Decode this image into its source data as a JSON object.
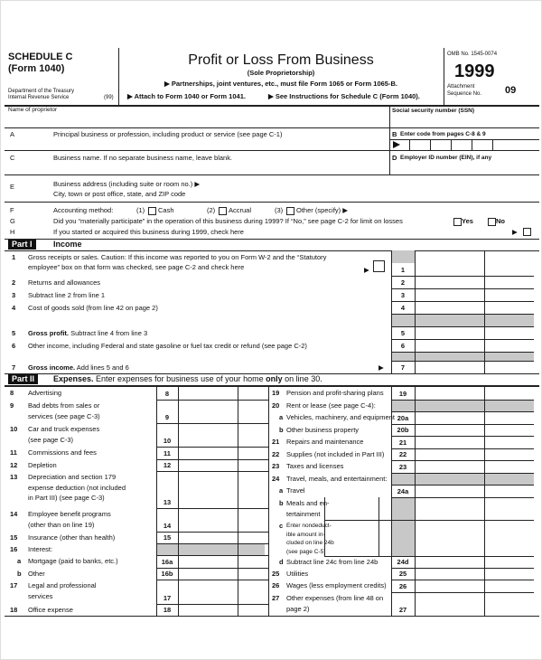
{
  "header": {
    "schedule": "SCHEDULE C",
    "form": "(Form 1040)",
    "department": "Department of the Treasury",
    "irs": "Internal Revenue Service",
    "irs_code": "(99)",
    "title": "Profit or Loss From Business",
    "subtitle": "(Sole Proprietorship)",
    "note1": "▶ Partnerships, joint ventures, etc., must file Form 1065 or Form 1065-B.",
    "note2": "▶ Attach to Form 1040 or Form 1041.",
    "note3": "▶ See Instructions for Schedule C (Form 1040).",
    "omb": "OMB No. 1545-0074",
    "year": "1999",
    "attachment": "Attachment",
    "sequence": "Sequence No.",
    "sequence_no": "09"
  },
  "identity": {
    "name_label": "Name of proprietor",
    "ssn_label": "Social security number (SSN)",
    "a_letter": "A",
    "a_text": "Principal business or profession, including product or service (see page C-1)",
    "b_letter": "B",
    "b_text": "Enter code from pages C-8 & 9",
    "c_letter": "C",
    "c_text": "Business name. If no separate business name, leave blank.",
    "d_letter": "D",
    "d_text": "Employer ID number (EIN), if any",
    "e_letter": "E",
    "e_text": "Business address (including suite or room no.) ▶",
    "e_text2": "City, town or post office, state, and ZIP code",
    "f_letter": "F",
    "f_text": "Accounting method:",
    "f_opt1": "(1)",
    "f_opt1_label": "Cash",
    "f_opt2": "(2)",
    "f_opt2_label": "Accrual",
    "f_opt3": "(3)",
    "f_opt3_label": "Other (specify) ▶",
    "g_letter": "G",
    "g_text": "Did you “materially participate” in the operation of this business during 1999? If “No,” see page C-2 for limit on losses",
    "yes": "Yes",
    "no": "No",
    "h_letter": "H",
    "h_text": "If you started or acquired this business during 1999, check here",
    "h_arrow": "▶"
  },
  "part1": {
    "label": "Part I",
    "title": "Income",
    "lines": [
      {
        "num": "1",
        "text": [
          "Gross receipts or sales. Caution: If this income was reported to you on Form W-2 and the “Statutory",
          "employee” box on that form was checked, see page C-2 and check here"
        ],
        "arrow": "▶",
        "box": "1"
      },
      {
        "num": "2",
        "text": [
          "Returns and allowances"
        ],
        "box": "2"
      },
      {
        "num": "3",
        "text": [
          "Subtract line 2 from line 1"
        ],
        "box": "3"
      },
      {
        "num": "4",
        "text": [
          "Cost of goods sold (from line 42 on page 2)"
        ],
        "box": "4"
      },
      {
        "num": "5",
        "bold": "Gross profit.",
        "text": [
          "Subtract line 4 from line 3"
        ],
        "box": "5"
      },
      {
        "num": "6",
        "text": [
          "Other income, including Federal and state gasoline or fuel tax credit or refund (see page C-2)"
        ],
        "box": "6"
      },
      {
        "num": "7",
        "bold": "Gross income.",
        "text": [
          "Add lines 5 and 6"
        ],
        "arrow": "▶",
        "box": "7"
      }
    ]
  },
  "part2": {
    "label": "Part II",
    "title": "Expenses.",
    "subtitle": [
      "Enter expenses for business use of your home ",
      "only",
      " on line 30."
    ],
    "left": [
      {
        "num": "8",
        "text": [
          "Advertising"
        ],
        "box": "8"
      },
      {
        "num": "9",
        "text": [
          "Bad debts from sales or",
          "services (see page C-3)"
        ],
        "box": "9"
      },
      {
        "num": "10",
        "text": [
          "Car and truck expenses",
          "(see page C-3)"
        ],
        "box": "10"
      },
      {
        "num": "11",
        "text": [
          "Commissions and fees"
        ],
        "box": "11"
      },
      {
        "num": "12",
        "text": [
          "Depletion"
        ],
        "box": "12"
      },
      {
        "num": "13",
        "text": [
          "Depreciation and section 179",
          "expense deduction (not included",
          "in Part III) (see page C-3)"
        ],
        "box": "13"
      },
      {
        "num": "14",
        "text": [
          "Employee benefit programs",
          "(other than on line 19)"
        ],
        "box": "14"
      },
      {
        "num": "15",
        "text": [
          "Insurance (other than health)"
        ],
        "box": "15"
      },
      {
        "num": "16",
        "text": [
          "Interest:"
        ]
      },
      {
        "num": "a",
        "text": [
          "Mortgage (paid to banks, etc.)"
        ],
        "box": "16a"
      },
      {
        "num": "b",
        "text": [
          "Other"
        ],
        "box": "16b"
      },
      {
        "num": "17",
        "text": [
          "Legal and professional",
          "services"
        ],
        "box": "17"
      },
      {
        "num": "18",
        "text": [
          "Office expense"
        ],
        "box": "18"
      }
    ],
    "right": [
      {
        "num": "19",
        "text": [
          "Pension and profit-sharing plans"
        ],
        "box": "19"
      },
      {
        "num": "20",
        "text": [
          "Rent or lease (see page C-4):"
        ]
      },
      {
        "num": "a",
        "text": [
          "Vehicles, machinery, and equipment"
        ],
        "box": "20a"
      },
      {
        "num": "b",
        "text": [
          "Other business property"
        ],
        "box": "20b"
      },
      {
        "num": "21",
        "text": [
          "Repairs and maintenance"
        ],
        "box": "21"
      },
      {
        "num": "22",
        "text": [
          "Supplies (not included in Part III)"
        ],
        "box": "22"
      },
      {
        "num": "23",
        "text": [
          "Taxes and licenses"
        ],
        "box": "23"
      },
      {
        "num": "24",
        "text": [
          "Travel, meals, and entertainment:"
        ]
      },
      {
        "num": "a",
        "text": [
          "Travel"
        ],
        "box": "24a"
      },
      {
        "num": "b",
        "text": [
          "Meals and en-",
          "tertainment"
        ]
      },
      {
        "num": "c",
        "text": [
          "Enter nondeduct-",
          "ible amount in-",
          "cluded on line 24b",
          "(see page C-5)"
        ]
      },
      {
        "num": "d",
        "text": [
          "Subtract line 24c from line 24b"
        ],
        "box": "24d"
      },
      {
        "num": "25",
        "text": [
          "Utilities"
        ],
        "box": "25"
      },
      {
        "num": "26",
        "text": [
          "Wages (less employment credits)"
        ],
        "box": "26"
      },
      {
        "num": "27",
        "text": [
          "Other expenses (from line 48 on",
          "page 2)"
        ],
        "box": "27"
      }
    ]
  }
}
